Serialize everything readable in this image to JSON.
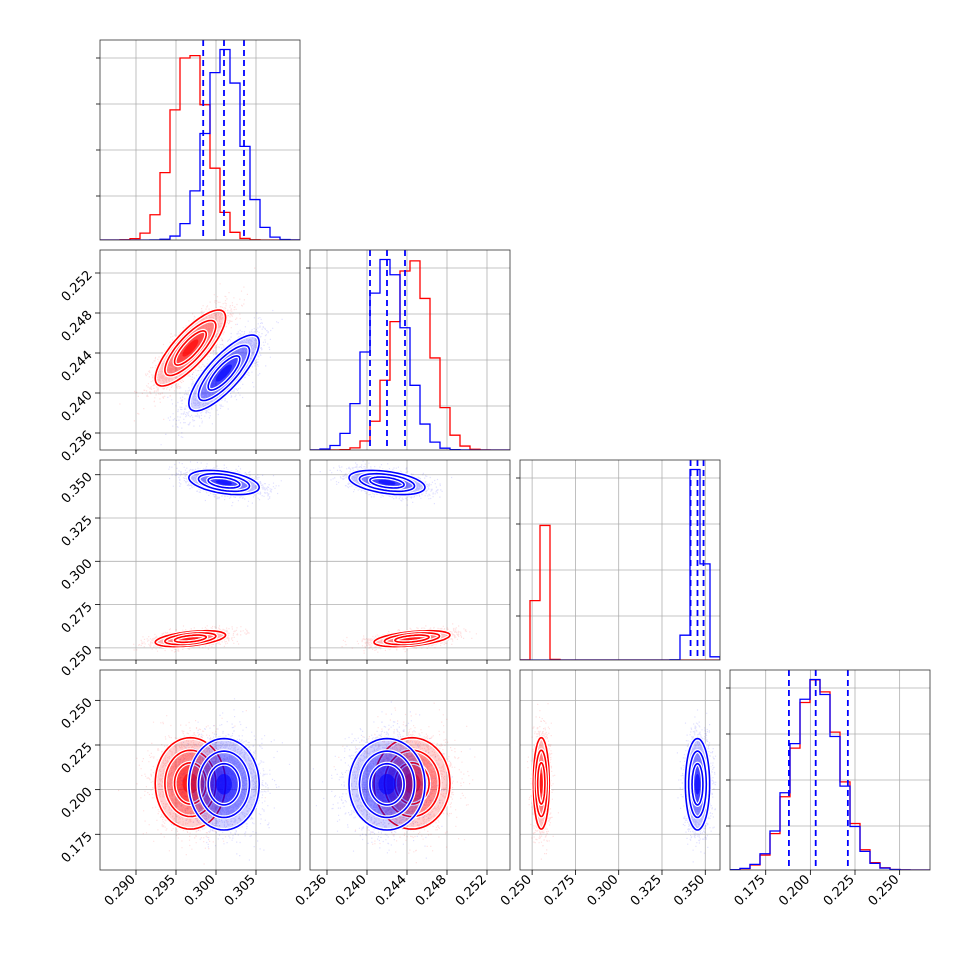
{
  "chart_data": {
    "type": "corner",
    "grid": true,
    "colors": {
      "model_a": "#ff0000",
      "model_b": "#0000ff"
    },
    "params": [
      {
        "range": [
          0.2855,
          0.3105
        ],
        "ticks": [
          0.29,
          0.295,
          0.3,
          0.305
        ],
        "tick_labels": [
          "0.290",
          "0.295",
          "0.300",
          "0.305"
        ]
      },
      {
        "range": [
          0.2343,
          0.2543
        ],
        "ticks": [
          0.236,
          0.24,
          0.244,
          0.248,
          0.252
        ],
        "tick_labels": [
          "0.236",
          "0.240",
          "0.244",
          "0.248",
          "0.252"
        ]
      },
      {
        "range": [
          0.243,
          0.3585
        ],
        "ticks": [
          0.25,
          0.275,
          0.3,
          0.325,
          0.35
        ],
        "tick_labels": [
          "0.250",
          "0.275",
          "0.300",
          "0.325",
          "0.350"
        ]
      },
      {
        "range": [
          0.155,
          0.267
        ],
        "ticks": [
          0.175,
          0.2,
          0.225,
          0.25
        ],
        "tick_labels": [
          "0.175",
          "0.200",
          "0.225",
          "0.250"
        ]
      }
    ],
    "series": [
      {
        "color": "#ff0000",
        "mean": [
          0.2968,
          0.2445,
          0.2553,
          0.2035
        ],
        "std": [
          0.0022,
          0.0019,
          0.0023,
          0.0128
        ],
        "corr": {
          "0-1": 0.8,
          "0-2": 0.45,
          "0-3": 0.0,
          "1-2": 0.45,
          "1-3": 0.0,
          "2-3": 0.0
        }
      },
      {
        "color": "#0000ff",
        "mean": [
          0.301,
          0.242,
          0.3455,
          0.203
        ],
        "std": [
          0.0022,
          0.0019,
          0.0035,
          0.0128
        ],
        "quantiles": [
          [
            0.2984,
            0.301,
            0.3035
          ],
          [
            0.2403,
            0.242,
            0.2438
          ],
          [
            0.3415,
            0.3455,
            0.349
          ],
          [
            0.188,
            0.203,
            0.221
          ]
        ],
        "corr": {
          "0-1": 0.8,
          "0-2": -0.4,
          "0-3": 0.0,
          "1-2": -0.4,
          "1-3": 0.0,
          "2-3": 0.0
        }
      }
    ]
  }
}
